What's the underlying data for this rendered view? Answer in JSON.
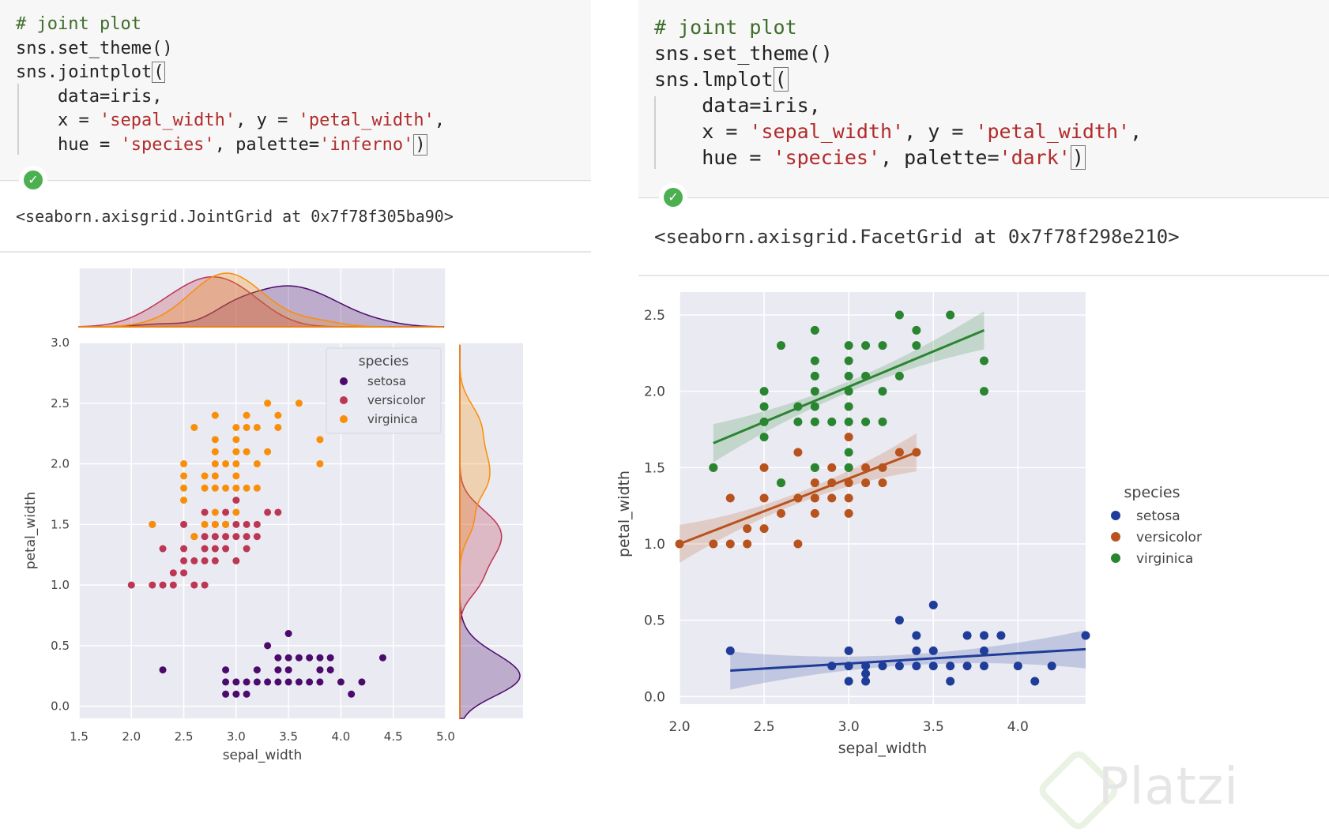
{
  "left": {
    "code": {
      "comment": "# joint plot",
      "line2": "sns.set_theme()",
      "line3_prefix": "sns.jointplot",
      "line3_bracket": "(",
      "line4": "data=iris,",
      "line5_a": "x = ",
      "line5_b": "'sepal_width'",
      "line5_c": ", y = ",
      "line5_d": "'petal_width'",
      "line5_e": ",",
      "line6_a": "hue = ",
      "line6_b": "'species'",
      "line6_c": ", palette=",
      "line6_d": "'inferno'",
      "line6_e": ")"
    },
    "output": "<seaborn.axisgrid.JointGrid at 0x7f78f305ba90>"
  },
  "right": {
    "code": {
      "comment": "# joint plot",
      "line2": "sns.set_theme()",
      "line3_prefix": "sns.lmplot",
      "line3_bracket": "(",
      "line4": "data=iris,",
      "line5_a": "x = ",
      "line5_b": "'sepal_width'",
      "line5_c": ", y = ",
      "line5_d": "'petal_width'",
      "line5_e": ",",
      "line6_a": "hue = ",
      "line6_b": "'species'",
      "line6_c": ", palette=",
      "line6_d": "'dark'",
      "line6_e": ")"
    },
    "output": "<seaborn.axisgrid.FacetGrid at 0x7f78f298e210>"
  },
  "watermark": "Platzi",
  "chart_data": [
    {
      "type": "scatter",
      "subtype": "jointplot",
      "xlabel": "sepal_width",
      "ylabel": "petal_width",
      "xlim": [
        1.5,
        5.0
      ],
      "ylim": [
        -0.1,
        3.0
      ],
      "xticks": [
        "1.5",
        "2.0",
        "2.5",
        "3.0",
        "3.5",
        "4.0",
        "4.5",
        "5.0"
      ],
      "yticks": [
        "0.0",
        "0.5",
        "1.0",
        "1.5",
        "2.0",
        "2.5",
        "3.0"
      ],
      "grid": true,
      "legend_title": "species",
      "legend_position": "top-right",
      "marginal_plots": "kde",
      "series": [
        {
          "name": "setosa",
          "color": "#4b0a6c",
          "points": [
            [
              2.3,
              0.3
            ],
            [
              2.9,
              0.2
            ],
            [
              2.9,
              0.3
            ],
            [
              3.0,
              0.1
            ],
            [
              3.0,
              0.2
            ],
            [
              3.1,
              0.1
            ],
            [
              3.1,
              0.2
            ],
            [
              3.2,
              0.2
            ],
            [
              3.3,
              0.2
            ],
            [
              3.4,
              0.2
            ],
            [
              3.4,
              0.3
            ],
            [
              3.4,
              0.4
            ],
            [
              3.5,
              0.2
            ],
            [
              3.5,
              0.3
            ],
            [
              3.5,
              0.6
            ],
            [
              3.6,
              0.2
            ],
            [
              3.7,
              0.2
            ],
            [
              3.7,
              0.4
            ],
            [
              3.8,
              0.2
            ],
            [
              3.8,
              0.3
            ],
            [
              3.9,
              0.4
            ],
            [
              4.0,
              0.2
            ],
            [
              4.1,
              0.1
            ],
            [
              4.2,
              0.2
            ],
            [
              4.4,
              0.4
            ],
            [
              3.3,
              0.5
            ],
            [
              3.6,
              0.4
            ],
            [
              3.9,
              0.3
            ],
            [
              2.9,
              0.1
            ],
            [
              3.2,
              0.3
            ],
            [
              3.5,
              0.4
            ],
            [
              3.8,
              0.4
            ]
          ]
        },
        {
          "name": "versicolor",
          "color": "#bc3754",
          "points": [
            [
              2.0,
              1.0
            ],
            [
              2.2,
              1.0
            ],
            [
              2.2,
              1.5
            ],
            [
              2.3,
              1.0
            ],
            [
              2.3,
              1.3
            ],
            [
              2.4,
              1.0
            ],
            [
              2.4,
              1.1
            ],
            [
              2.5,
              1.1
            ],
            [
              2.5,
              1.2
            ],
            [
              2.5,
              1.3
            ],
            [
              2.5,
              1.5
            ],
            [
              2.6,
              1.0
            ],
            [
              2.6,
              1.2
            ],
            [
              2.6,
              1.4
            ],
            [
              2.7,
              1.0
            ],
            [
              2.7,
              1.2
            ],
            [
              2.7,
              1.3
            ],
            [
              2.7,
              1.4
            ],
            [
              2.7,
              1.6
            ],
            [
              2.8,
              1.2
            ],
            [
              2.8,
              1.3
            ],
            [
              2.8,
              1.4
            ],
            [
              2.8,
              1.5
            ],
            [
              2.9,
              1.3
            ],
            [
              2.9,
              1.4
            ],
            [
              2.9,
              1.5
            ],
            [
              3.0,
              1.2
            ],
            [
              3.0,
              1.4
            ],
            [
              3.0,
              1.5
            ],
            [
              3.0,
              1.7
            ],
            [
              3.1,
              1.4
            ],
            [
              3.1,
              1.5
            ],
            [
              3.2,
              1.4
            ],
            [
              3.2,
              1.5
            ],
            [
              3.3,
              1.6
            ],
            [
              3.4,
              1.6
            ],
            [
              2.9,
              1.6
            ],
            [
              3.1,
              1.3
            ]
          ]
        },
        {
          "name": "virginica",
          "color": "#f98e09",
          "points": [
            [
              2.2,
              1.5
            ],
            [
              2.5,
              1.7
            ],
            [
              2.5,
              1.8
            ],
            [
              2.5,
              1.9
            ],
            [
              2.5,
              2.0
            ],
            [
              2.6,
              1.4
            ],
            [
              2.6,
              2.3
            ],
            [
              2.7,
              1.8
            ],
            [
              2.7,
              1.9
            ],
            [
              2.8,
              1.5
            ],
            [
              2.8,
              1.8
            ],
            [
              2.8,
              1.9
            ],
            [
              2.8,
              2.0
            ],
            [
              2.8,
              2.1
            ],
            [
              2.8,
              2.2
            ],
            [
              2.8,
              2.4
            ],
            [
              2.9,
              1.8
            ],
            [
              3.0,
              1.6
            ],
            [
              3.0,
              1.8
            ],
            [
              3.0,
              2.0
            ],
            [
              3.0,
              2.1
            ],
            [
              3.0,
              2.2
            ],
            [
              3.0,
              2.3
            ],
            [
              3.1,
              1.8
            ],
            [
              3.1,
              2.1
            ],
            [
              3.1,
              2.3
            ],
            [
              3.2,
              1.8
            ],
            [
              3.2,
              2.0
            ],
            [
              3.2,
              2.3
            ],
            [
              3.3,
              2.1
            ],
            [
              3.3,
              2.5
            ],
            [
              3.4,
              2.3
            ],
            [
              3.4,
              2.4
            ],
            [
              3.6,
              2.5
            ],
            [
              3.8,
              2.0
            ],
            [
              3.8,
              2.2
            ],
            [
              2.9,
              1.5
            ],
            [
              3.1,
              2.4
            ],
            [
              2.7,
              1.5
            ],
            [
              2.8,
              1.6
            ],
            [
              3.0,
              1.9
            ],
            [
              2.9,
              2.0
            ]
          ]
        }
      ]
    },
    {
      "type": "scatter",
      "subtype": "lmplot",
      "xlabel": "sepal_width",
      "ylabel": "petal_width",
      "xlim": [
        2.0,
        4.4
      ],
      "ylim": [
        -0.05,
        2.65
      ],
      "xticks": [
        "2.0",
        "2.5",
        "3.0",
        "3.5",
        "4.0"
      ],
      "yticks": [
        "0.0",
        "0.5",
        "1.0",
        "1.5",
        "2.0",
        "2.5"
      ],
      "grid": true,
      "legend_title": "species",
      "legend_position": "right",
      "series": [
        {
          "name": "setosa",
          "color": "#1f3c99",
          "points": [
            [
              2.3,
              0.3
            ],
            [
              2.9,
              0.2
            ],
            [
              3.0,
              0.1
            ],
            [
              3.0,
              0.2
            ],
            [
              3.0,
              0.3
            ],
            [
              3.1,
              0.1
            ],
            [
              3.1,
              0.2
            ],
            [
              3.2,
              0.2
            ],
            [
              3.3,
              0.2
            ],
            [
              3.3,
              0.5
            ],
            [
              3.4,
              0.2
            ],
            [
              3.4,
              0.3
            ],
            [
              3.4,
              0.4
            ],
            [
              3.5,
              0.2
            ],
            [
              3.5,
              0.3
            ],
            [
              3.5,
              0.6
            ],
            [
              3.6,
              0.2
            ],
            [
              3.7,
              0.2
            ],
            [
              3.7,
              0.4
            ],
            [
              3.8,
              0.2
            ],
            [
              3.8,
              0.3
            ],
            [
              3.8,
              0.4
            ],
            [
              3.9,
              0.4
            ],
            [
              4.0,
              0.2
            ],
            [
              4.1,
              0.1
            ],
            [
              4.2,
              0.2
            ],
            [
              4.4,
              0.4
            ],
            [
              3.1,
              0.15
            ],
            [
              3.6,
              0.1
            ]
          ],
          "fit": [
            [
              2.3,
              0.17
            ],
            [
              4.4,
              0.31
            ]
          ]
        },
        {
          "name": "versicolor",
          "color": "#b8531e",
          "points": [
            [
              2.0,
              1.0
            ],
            [
              2.2,
              1.0
            ],
            [
              2.2,
              1.5
            ],
            [
              2.3,
              1.0
            ],
            [
              2.3,
              1.3
            ],
            [
              2.4,
              1.0
            ],
            [
              2.4,
              1.1
            ],
            [
              2.5,
              1.1
            ],
            [
              2.5,
              1.3
            ],
            [
              2.5,
              1.5
            ],
            [
              2.6,
              1.2
            ],
            [
              2.6,
              1.4
            ],
            [
              2.7,
              1.0
            ],
            [
              2.7,
              1.3
            ],
            [
              2.7,
              1.6
            ],
            [
              2.8,
              1.2
            ],
            [
              2.8,
              1.3
            ],
            [
              2.8,
              1.4
            ],
            [
              2.8,
              1.5
            ],
            [
              2.9,
              1.3
            ],
            [
              2.9,
              1.4
            ],
            [
              2.9,
              1.5
            ],
            [
              3.0,
              1.2
            ],
            [
              3.0,
              1.4
            ],
            [
              3.0,
              1.5
            ],
            [
              3.0,
              1.7
            ],
            [
              3.1,
              1.4
            ],
            [
              3.1,
              1.5
            ],
            [
              3.2,
              1.4
            ],
            [
              3.2,
              1.5
            ],
            [
              3.3,
              1.6
            ],
            [
              3.4,
              1.6
            ],
            [
              3.0,
              1.3
            ]
          ],
          "fit": [
            [
              2.0,
              1.0
            ],
            [
              3.4,
              1.6
            ]
          ]
        },
        {
          "name": "virginica",
          "color": "#2a8530",
          "points": [
            [
              2.2,
              1.5
            ],
            [
              2.5,
              1.7
            ],
            [
              2.5,
              1.8
            ],
            [
              2.5,
              1.9
            ],
            [
              2.5,
              2.0
            ],
            [
              2.6,
              1.4
            ],
            [
              2.6,
              2.3
            ],
            [
              2.7,
              1.8
            ],
            [
              2.7,
              1.9
            ],
            [
              2.8,
              1.5
            ],
            [
              2.8,
              1.8
            ],
            [
              2.8,
              1.9
            ],
            [
              2.8,
              2.0
            ],
            [
              2.8,
              2.1
            ],
            [
              2.8,
              2.2
            ],
            [
              2.8,
              2.4
            ],
            [
              2.9,
              1.8
            ],
            [
              3.0,
              1.6
            ],
            [
              3.0,
              1.8
            ],
            [
              3.0,
              2.0
            ],
            [
              3.0,
              2.1
            ],
            [
              3.0,
              2.2
            ],
            [
              3.0,
              2.3
            ],
            [
              3.1,
              1.8
            ],
            [
              3.1,
              2.1
            ],
            [
              3.1,
              2.3
            ],
            [
              3.2,
              1.8
            ],
            [
              3.2,
              2.0
            ],
            [
              3.2,
              2.3
            ],
            [
              3.3,
              2.1
            ],
            [
              3.3,
              2.5
            ],
            [
              3.4,
              2.3
            ],
            [
              3.4,
              2.4
            ],
            [
              3.6,
              2.5
            ],
            [
              3.8,
              2.0
            ],
            [
              3.8,
              2.2
            ],
            [
              3.0,
              1.5
            ],
            [
              3.0,
              1.9
            ]
          ],
          "fit": [
            [
              2.2,
              1.66
            ],
            [
              3.8,
              2.4
            ]
          ]
        }
      ]
    }
  ]
}
